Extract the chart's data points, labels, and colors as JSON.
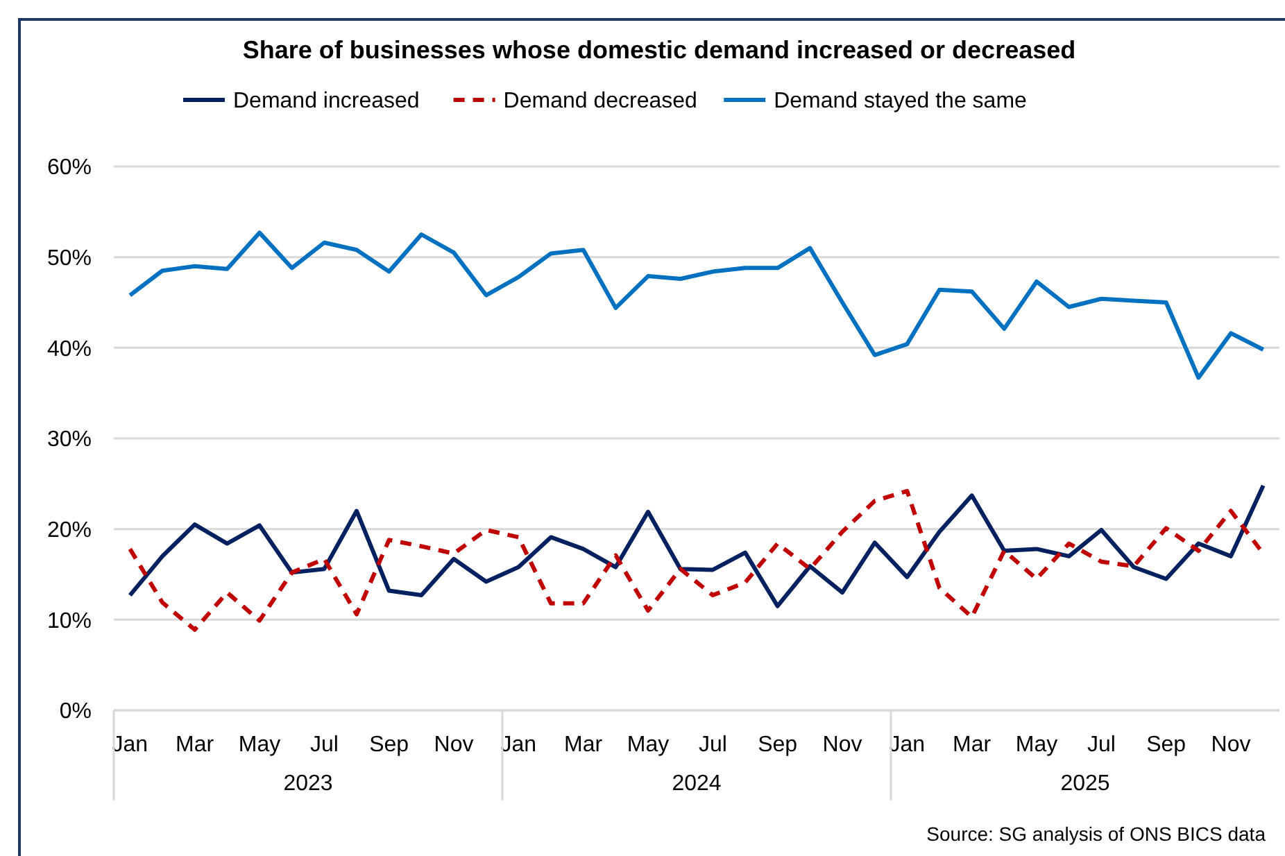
{
  "chart_data": {
    "type": "line",
    "title": "Share of businesses whose domestic demand increased or decreased",
    "categories": [
      "Jan",
      null,
      "Mar",
      null,
      "May",
      null,
      "Jul",
      null,
      "Sep",
      null,
      "Nov",
      null,
      "Jan",
      null,
      "Mar",
      null,
      "May",
      null,
      "Jul",
      null,
      "Sep",
      null,
      "Nov",
      null,
      "Jan",
      null,
      "Mar",
      null,
      "May",
      null,
      "Jul",
      null,
      "Sep",
      null,
      "Nov",
      null
    ],
    "series": [
      {
        "name": "Demand increased",
        "color": "#002060",
        "line_style": "solid",
        "values": [
          12.7,
          17.0,
          20.5,
          18.4,
          20.4,
          15.2,
          15.6,
          22.0,
          13.2,
          12.7,
          16.7,
          14.2,
          15.8,
          19.1,
          17.8,
          15.8,
          21.9,
          15.6,
          15.5,
          17.4,
          11.5,
          15.9,
          13.0,
          18.5,
          14.7,
          19.7,
          23.7,
          17.6,
          17.8,
          17.0,
          19.9,
          15.8,
          14.5,
          18.4,
          17.0,
          24.8
        ]
      },
      {
        "name": "Demand decreased",
        "color": "#c00000",
        "line_style": "dashed",
        "values": [
          17.8,
          11.9,
          8.9,
          13.0,
          9.9,
          15.2,
          16.7,
          10.6,
          18.8,
          18.1,
          17.3,
          19.9,
          19.1,
          11.8,
          11.8,
          17.1,
          11.0,
          15.6,
          12.7,
          14.1,
          18.4,
          15.6,
          19.7,
          23.1,
          24.2,
          13.5,
          10.3,
          17.6,
          14.5,
          18.4,
          16.4,
          15.9,
          20.1,
          17.6,
          22.0,
          17.3
        ]
      },
      {
        "name": "Demand stayed the same",
        "color": "#0070c0",
        "line_style": "solid",
        "values": [
          45.8,
          48.5,
          49.0,
          48.7,
          52.7,
          48.8,
          51.6,
          50.8,
          48.4,
          52.5,
          50.5,
          45.8,
          47.8,
          50.4,
          50.8,
          44.4,
          47.9,
          47.6,
          48.4,
          48.8,
          48.8,
          51.0,
          45.0,
          39.2,
          40.4,
          46.4,
          46.2,
          42.1,
          47.3,
          44.5,
          45.4,
          45.2,
          45.0,
          36.7,
          41.6,
          39.8
        ]
      }
    ],
    "ylim": [
      0,
      60
    ],
    "yticks": [
      {
        "value": 0,
        "label": "0%"
      },
      {
        "value": 10,
        "label": "10%"
      },
      {
        "value": 20,
        "label": "20%"
      },
      {
        "value": 30,
        "label": "30%"
      },
      {
        "value": 40,
        "label": "40%"
      },
      {
        "value": 50,
        "label": "50%"
      },
      {
        "value": 60,
        "label": "60%"
      }
    ],
    "grid": "y",
    "legend": "top",
    "annotations": [
      "2023",
      "2024",
      "2025",
      "Source: SG analysis of ONS BICS data"
    ]
  }
}
